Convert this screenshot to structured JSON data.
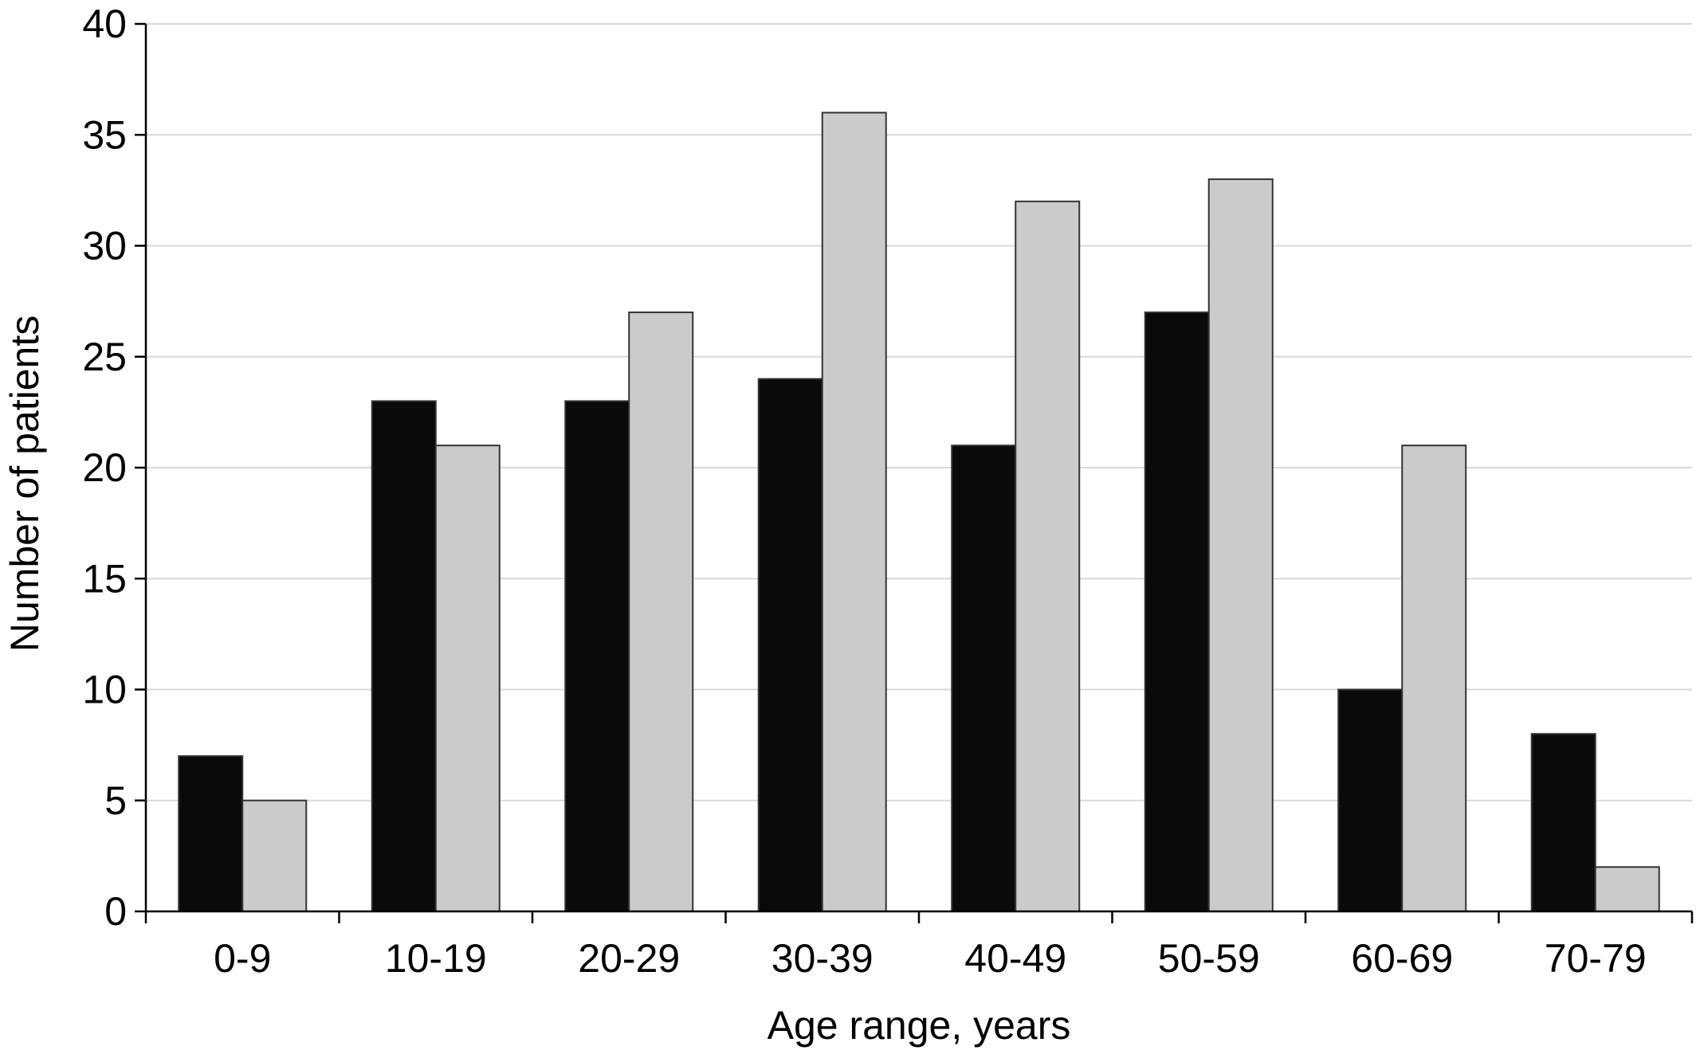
{
  "chart_data": {
    "type": "bar",
    "title": "",
    "xlabel": "Age range, years",
    "ylabel": "Number of patients",
    "categories": [
      "0-9",
      "10-19",
      "20-29",
      "30-39",
      "40-49",
      "50-59",
      "60-69",
      "70-79"
    ],
    "series": [
      {
        "values": [
          7,
          23,
          23,
          24,
          21,
          27,
          10,
          8
        ],
        "color": "#0a0a0a"
      },
      {
        "values": [
          5,
          21,
          27,
          36,
          32,
          33,
          21,
          2
        ],
        "color": "#cbcbcb"
      }
    ],
    "ylim": [
      0,
      40
    ],
    "yticks": [
      0,
      5,
      10,
      15,
      20,
      25,
      30,
      35,
      40
    ],
    "grid": true,
    "legend": "none"
  }
}
